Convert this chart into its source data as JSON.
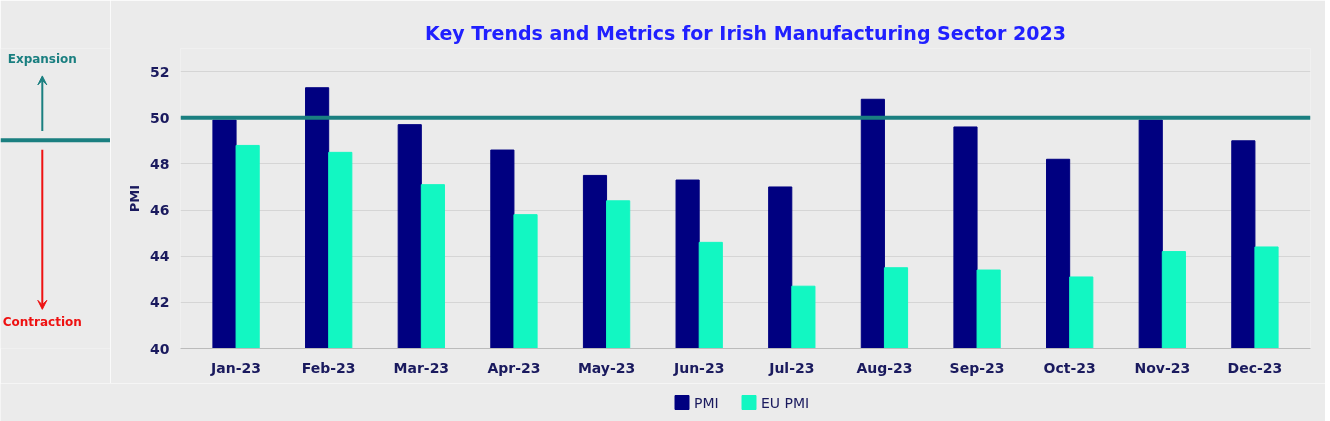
{
  "chart_data": {
    "type": "bar",
    "title": "Key Trends and Metrics for Irish Manufacturing Sector 2023",
    "ylabel": "PMI",
    "categories": [
      "Jan-23",
      "Feb-23",
      "Mar-23",
      "Apr-23",
      "May-23",
      "Jun-23",
      "Jul-23",
      "Aug-23",
      "Sep-23",
      "Oct-23",
      "Nov-23",
      "Dec-23"
    ],
    "series": [
      {
        "name": "PMI",
        "color": "#000080",
        "values": [
          49.9,
          51.3,
          49.7,
          48.6,
          47.5,
          47.3,
          47.0,
          50.8,
          49.6,
          48.2,
          49.9,
          49.0
        ]
      },
      {
        "name": "EU PMI",
        "color": "#12f7c2",
        "values": [
          48.8,
          48.5,
          47.1,
          45.8,
          46.4,
          44.6,
          42.7,
          43.5,
          43.4,
          43.1,
          44.2,
          44.4
        ]
      }
    ],
    "ylim": [
      40,
      53
    ],
    "yticks": [
      40,
      42,
      44,
      46,
      48,
      50,
      52
    ],
    "grid": "y",
    "legend": "bottom",
    "ref_lines": [
      {
        "axis": "y",
        "value": 50,
        "color": "#1a7f80"
      }
    ],
    "annotations": [
      "Expansion",
      "Contraction"
    ]
  }
}
